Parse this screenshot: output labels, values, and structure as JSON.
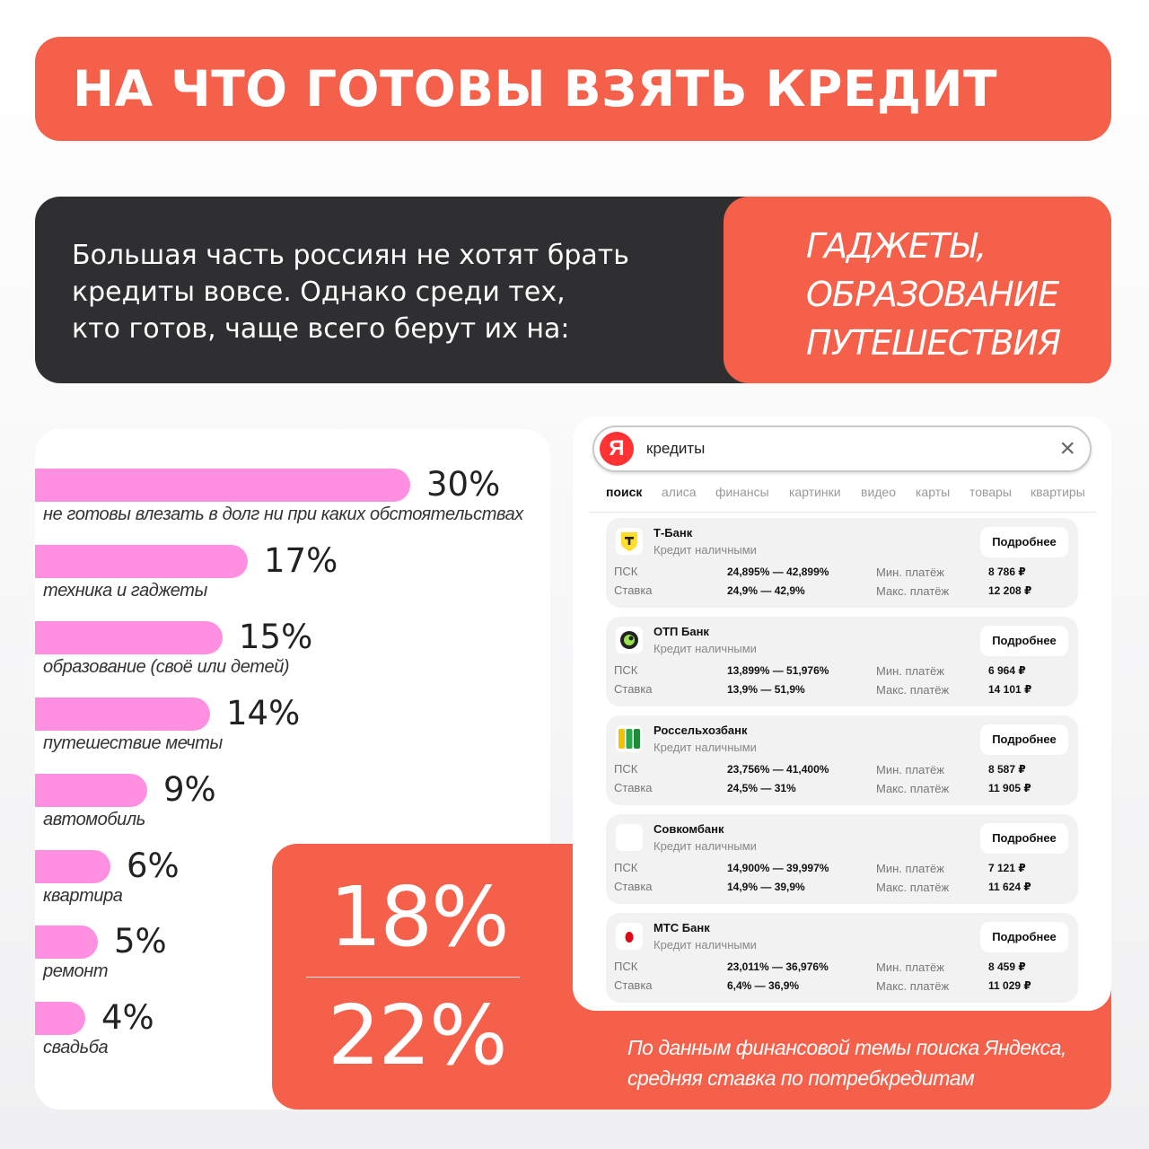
{
  "header": {
    "title": "НА ЧТО ГОТОВЫ ВЗЯТЬ КРЕДИТ"
  },
  "intro": {
    "lines": [
      "Большая часть россиян не хотят брать",
      "кредиты вовсе. Однако среди тех,",
      "кто готов, чаще всего берут их на:"
    ],
    "highlights": [
      "ГАДЖЕТЫ,",
      "ОБРАЗОВАНИЕ",
      "ПУТЕШЕСТВИЯ"
    ]
  },
  "chart_data": {
    "type": "bar",
    "orientation": "horizontal",
    "categories": [
      "не готовы влезать в долг ни при каких обстоятельствах",
      "техника и гаджеты",
      "образование (своё или детей)",
      "путешествие мечты",
      "автомобиль",
      "квартира",
      "ремонт",
      "свадьба"
    ],
    "values": [
      30,
      17,
      15,
      14,
      9,
      6,
      5,
      4
    ],
    "value_labels": [
      "30%",
      "17%",
      "15%",
      "14%",
      "9%",
      "6%",
      "5%",
      "4%"
    ],
    "unit": "%",
    "bar_color": "#ff8fe0"
  },
  "rates": {
    "low": "18%",
    "high": "22%",
    "note_lines": [
      "По данным финансовой темы поиска Яндекса,",
      "средняя ставка по потребкредитам"
    ]
  },
  "search": {
    "logo": "Я",
    "query": "кредиты",
    "clear_icon": "×",
    "tabs": [
      "поиск",
      "алиса",
      "финансы",
      "картинки",
      "видео",
      "карты",
      "товары",
      "квартиры"
    ],
    "active_tab": "поиск",
    "labels": {
      "psk": "ПСК",
      "rate": "Ставка",
      "min_payment": "Мин. платёж",
      "max_payment": "Макс. платёж",
      "more": "Подробнее"
    },
    "banks": [
      {
        "name": "Т-Банк",
        "product": "Кредит наличными",
        "psk": "24,895% — 42,899%",
        "rate": "24,9% — 42,9%",
        "min": "8 786 ₽",
        "max": "12 208 ₽",
        "logo": "tbank-icon"
      },
      {
        "name": "ОТП Банк",
        "product": "Кредит наличными",
        "psk": "13,899% — 51,976%",
        "rate": "13,9% — 51,9%",
        "min": "6 964 ₽",
        "max": "14 101 ₽",
        "logo": "otp-icon"
      },
      {
        "name": "Россельхозбанк",
        "product": "Кредит наличными",
        "psk": "23,756% — 41,400%",
        "rate": "24,5% — 31%",
        "min": "8 587 ₽",
        "max": "11 905 ₽",
        "logo": "rshb-icon"
      },
      {
        "name": "Совкомбанк",
        "product": "Кредит наличными",
        "psk": "14,900% — 39,997%",
        "rate": "14,9% — 39,9%",
        "min": "7 121 ₽",
        "max": "11 624 ₽",
        "logo": "sovcom-icon"
      },
      {
        "name": "МТС Банк",
        "product": "Кредит наличными",
        "psk": "23,011% — 36,976%",
        "rate": "6,4% — 36,9%",
        "min": "8 459 ₽",
        "max": "11 029 ₽",
        "logo": "mts-icon"
      }
    ]
  },
  "colors": {
    "accent": "#f5604a",
    "dark": "#2f2f31",
    "bar": "#ff8fe0"
  }
}
